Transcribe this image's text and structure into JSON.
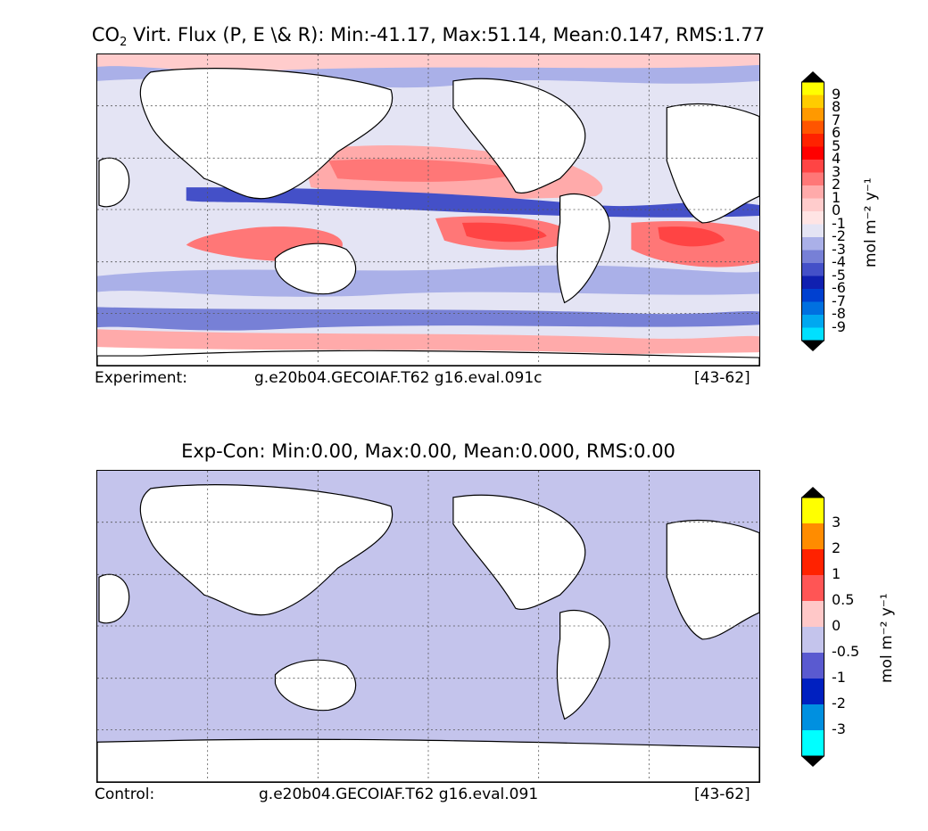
{
  "panel1": {
    "title_html": "CO<sub style=\"font-size:13px\">2</sub> Virt. Flux (P, E \\& R): Min:-41.17, Max:51.14, Mean:0.147, RMS:1.77",
    "title_prefix": "CO",
    "title_sub": "2",
    "title_rest": " Virt. Flux (P, E \\& R): Min:-41.17, Max:51.14, Mean:0.147, RMS:1.77",
    "footer_label": "Experiment:",
    "footer_case": "g.e20b04.GECOIAF.T62 g16.eval.091c",
    "footer_years": "[43-62]",
    "colorbar": {
      "ticks": [
        "9",
        "8",
        "7",
        "6",
        "5",
        "4",
        "3",
        "2",
        "1",
        "0",
        "-1",
        "-2",
        "-3",
        "-4",
        "-5",
        "-6",
        "-7",
        "-8",
        "-9"
      ],
      "colors": [
        "#ffff00",
        "#ffcc00",
        "#ff9900",
        "#ff5500",
        "#ff2200",
        "#ff0000",
        "#ff4444",
        "#ff7777",
        "#ffaaaa",
        "#ffcccc",
        "#ffe4e4",
        "#e4e4f4",
        "#aab0e8",
        "#7780d6",
        "#4450c8",
        "#1020b0",
        "#0040d0",
        "#0070e0",
        "#00a8f0",
        "#00e0ff"
      ],
      "units": "mol m⁻² y⁻¹"
    }
  },
  "panel2": {
    "title": "Exp-Con: Min:0.00, Max:0.00, Mean:0.000, RMS:0.00",
    "footer_label": "Control:",
    "footer_case": "g.e20b04.GECOIAF.T62 g16.eval.091",
    "footer_years": "[43-62]",
    "colorbar": {
      "ticks": [
        "3",
        "2",
        "1",
        "0.5",
        "0",
        "-0.5",
        "-1",
        "-2",
        "-3"
      ],
      "colors": [
        "#ffff00",
        "#ff8c00",
        "#ff2200",
        "#ff5555",
        "#ffc8c8",
        "#c4c4ec",
        "#5a5ad0",
        "#0020c0",
        "#0090e0",
        "#00ffff"
      ],
      "units": "mol m⁻² y⁻¹"
    }
  },
  "colors": {
    "ocean_base": "#c4c4ec",
    "land": "#ffffff",
    "frame": "#000000"
  }
}
